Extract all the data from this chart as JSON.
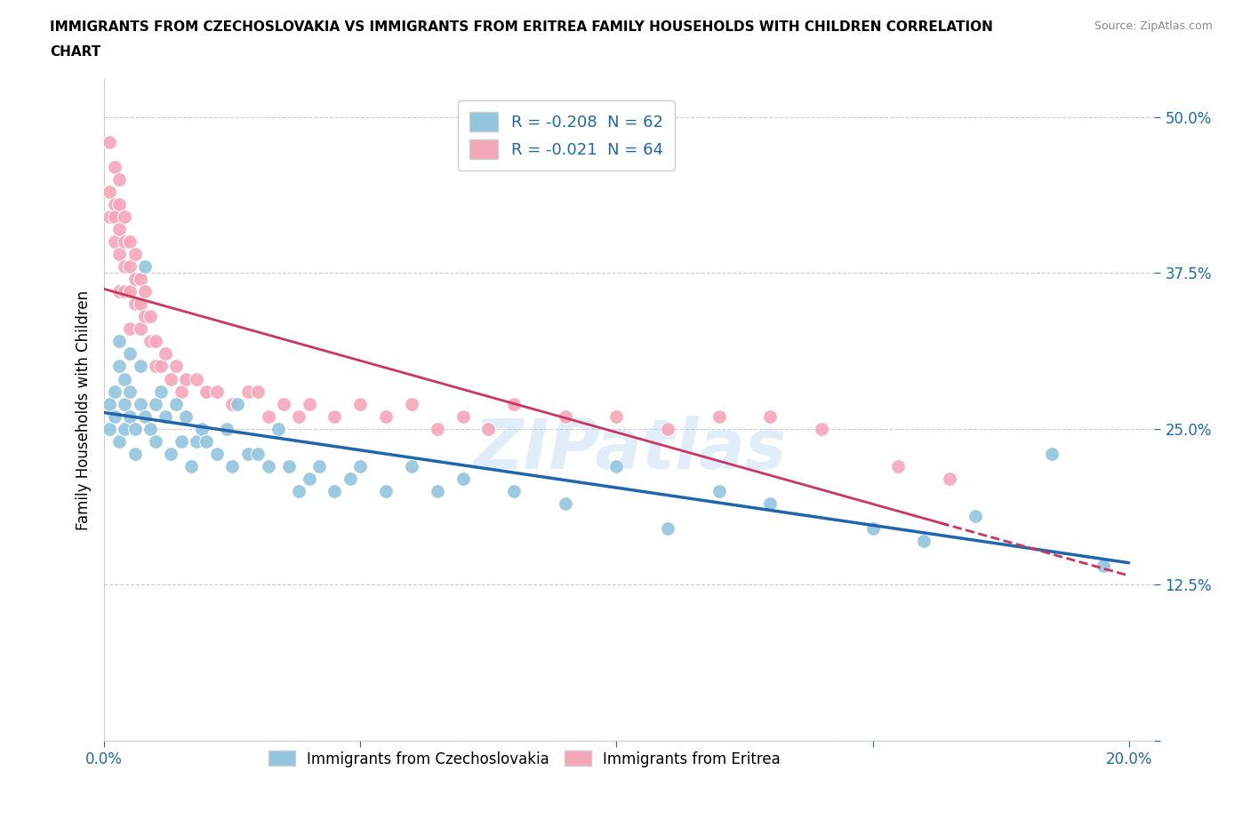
{
  "title": "IMMIGRANTS FROM CZECHOSLOVAKIA VS IMMIGRANTS FROM ERITREA FAMILY HOUSEHOLDS WITH CHILDREN CORRELATION\nCHART",
  "source_text": "Source: ZipAtlas.com",
  "ylabel": "Family Households with Children",
  "yticks": [
    0.0,
    0.125,
    0.25,
    0.375,
    0.5
  ],
  "ytick_labels": [
    "",
    "12.5%",
    "25.0%",
    "37.5%",
    "50.0%"
  ],
  "xticks": [
    0.0,
    0.05,
    0.1,
    0.15,
    0.2
  ],
  "xlim": [
    0.0,
    0.205
  ],
  "ylim": [
    0.0,
    0.53
  ],
  "legend_r1": "R = -0.208  N = 62",
  "legend_r2": "R = -0.021  N = 64",
  "legend_label1": "Immigrants from Czechoslovakia",
  "legend_label2": "Immigrants from Eritrea",
  "watermark": "ZIPatlas",
  "blue_color": "#92c5de",
  "pink_color": "#f4a7b9",
  "blue_line_color": "#2166ac",
  "pink_line_color": "#c9375e",
  "czecho_x": [
    0.001,
    0.001,
    0.002,
    0.002,
    0.003,
    0.003,
    0.003,
    0.004,
    0.004,
    0.004,
    0.005,
    0.005,
    0.005,
    0.006,
    0.006,
    0.007,
    0.007,
    0.008,
    0.008,
    0.009,
    0.01,
    0.01,
    0.011,
    0.012,
    0.013,
    0.014,
    0.015,
    0.016,
    0.017,
    0.018,
    0.019,
    0.02,
    0.022,
    0.024,
    0.025,
    0.026,
    0.028,
    0.03,
    0.032,
    0.034,
    0.036,
    0.038,
    0.04,
    0.042,
    0.045,
    0.048,
    0.05,
    0.055,
    0.06,
    0.065,
    0.07,
    0.08,
    0.09,
    0.1,
    0.11,
    0.12,
    0.13,
    0.15,
    0.16,
    0.17,
    0.185,
    0.195
  ],
  "czecho_y": [
    0.27,
    0.25,
    0.28,
    0.26,
    0.3,
    0.24,
    0.32,
    0.27,
    0.25,
    0.29,
    0.31,
    0.28,
    0.26,
    0.25,
    0.23,
    0.3,
    0.27,
    0.38,
    0.26,
    0.25,
    0.27,
    0.24,
    0.28,
    0.26,
    0.23,
    0.27,
    0.24,
    0.26,
    0.22,
    0.24,
    0.25,
    0.24,
    0.23,
    0.25,
    0.22,
    0.27,
    0.23,
    0.23,
    0.22,
    0.25,
    0.22,
    0.2,
    0.21,
    0.22,
    0.2,
    0.21,
    0.22,
    0.2,
    0.22,
    0.2,
    0.21,
    0.2,
    0.19,
    0.22,
    0.17,
    0.2,
    0.19,
    0.17,
    0.16,
    0.18,
    0.23,
    0.14
  ],
  "eritrea_x": [
    0.001,
    0.001,
    0.001,
    0.002,
    0.002,
    0.002,
    0.002,
    0.003,
    0.003,
    0.003,
    0.003,
    0.003,
    0.004,
    0.004,
    0.004,
    0.004,
    0.005,
    0.005,
    0.005,
    0.005,
    0.006,
    0.006,
    0.006,
    0.007,
    0.007,
    0.007,
    0.008,
    0.008,
    0.009,
    0.009,
    0.01,
    0.01,
    0.011,
    0.012,
    0.013,
    0.014,
    0.015,
    0.016,
    0.018,
    0.02,
    0.022,
    0.025,
    0.028,
    0.03,
    0.032,
    0.035,
    0.038,
    0.04,
    0.045,
    0.05,
    0.055,
    0.06,
    0.065,
    0.07,
    0.075,
    0.08,
    0.09,
    0.1,
    0.11,
    0.12,
    0.13,
    0.14,
    0.155,
    0.165
  ],
  "eritrea_y": [
    0.48,
    0.44,
    0.42,
    0.46,
    0.43,
    0.42,
    0.4,
    0.45,
    0.43,
    0.41,
    0.39,
    0.36,
    0.42,
    0.4,
    0.38,
    0.36,
    0.4,
    0.38,
    0.36,
    0.33,
    0.39,
    0.37,
    0.35,
    0.37,
    0.35,
    0.33,
    0.36,
    0.34,
    0.34,
    0.32,
    0.3,
    0.32,
    0.3,
    0.31,
    0.29,
    0.3,
    0.28,
    0.29,
    0.29,
    0.28,
    0.28,
    0.27,
    0.28,
    0.28,
    0.26,
    0.27,
    0.26,
    0.27,
    0.26,
    0.27,
    0.26,
    0.27,
    0.25,
    0.26,
    0.25,
    0.27,
    0.26,
    0.26,
    0.25,
    0.26,
    0.26,
    0.25,
    0.22,
    0.21
  ]
}
